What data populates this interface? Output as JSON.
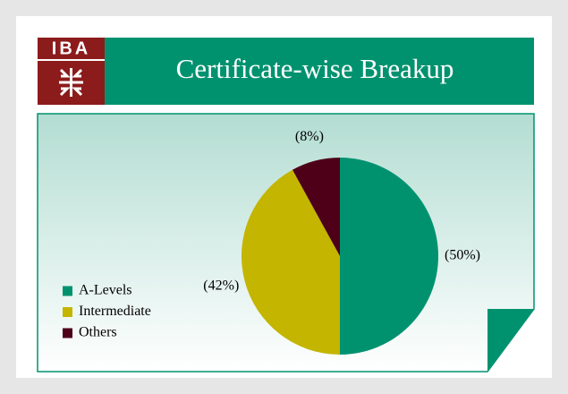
{
  "logo": "IBA",
  "chart_data": {
    "type": "pie",
    "title": "Certificate-wise Breakup",
    "categories": [
      "A-Levels",
      "Intermediate",
      "Others"
    ],
    "values": [
      50,
      42,
      8
    ],
    "value_labels": [
      "(50%)",
      "(42%)",
      "(8%)"
    ],
    "colors": [
      "#00926f",
      "#c3b500",
      "#4e0018"
    ],
    "legend": "left"
  }
}
